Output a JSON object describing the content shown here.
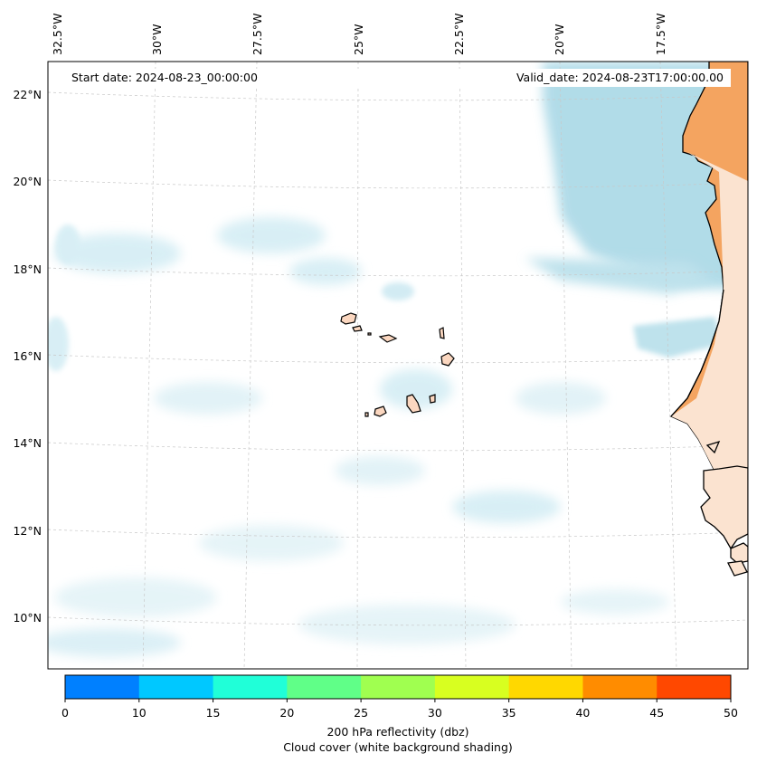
{
  "map": {
    "start_date": "Start date: 2024-08-23_00:00:00",
    "valid_date": "Valid_date: 2024-08-23T17:00:00.00",
    "lon_labels": [
      "32.5°W",
      "30°W",
      "27.5°W",
      "25°W",
      "22.5°W",
      "20°W",
      "17.5°W"
    ],
    "lat_labels": [
      "22°N",
      "20°N",
      "18°N",
      "16°N",
      "14°N",
      "12°N",
      "10°N"
    ],
    "colors": {
      "land": "#f4a460",
      "land_pale": "#fbe3d0",
      "cloud": "#a9d8e6",
      "coast": "#000000",
      "grid": "#c8c8c8"
    }
  },
  "colorbar": {
    "ticks": [
      "0",
      "10",
      "15",
      "20",
      "25",
      "30",
      "35",
      "40",
      "45",
      "50"
    ],
    "colors": [
      "#0080ff",
      "#00c8ff",
      "#20ffd8",
      "#60ff88",
      "#a0ff50",
      "#d8ff20",
      "#ffd800",
      "#ff8c00",
      "#ff4800"
    ],
    "label_line1": "200 hPa reflectivity (dbz)",
    "label_line2": "Cloud cover (white background shading)"
  }
}
